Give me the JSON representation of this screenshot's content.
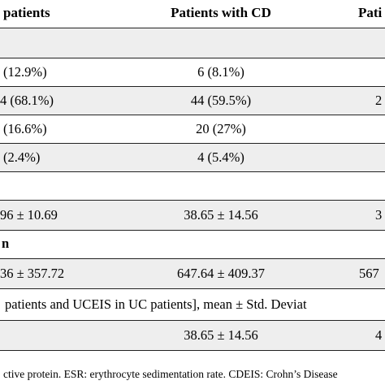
{
  "header": {
    "col1": "patients",
    "col2": "Patients with CD",
    "col3": "Pati"
  },
  "rows": [
    {
      "c1": "",
      "c2": "",
      "c3": ""
    },
    {
      "c1": "(12.9%)",
      "c2": "6 (8.1%)",
      "c3": ""
    },
    {
      "c1": "4 (68.1%)",
      "c2": "44 (59.5%)",
      "c3": "2"
    },
    {
      "c1": "(16.6%)",
      "c2": "20 (27%)",
      "c3": ""
    },
    {
      "c1": "(2.4%)",
      "c2": "4 (5.4%)",
      "c3": ""
    },
    {
      "c1": "",
      "c2": "",
      "c3": ""
    },
    {
      "c1": "96 ± 10.69",
      "c2": "38.65 ± 14.56",
      "c3": "3"
    },
    {
      "c1": "n",
      "c2": "",
      "c3": ""
    },
    {
      "c1": "36 ± 357.72",
      "c2": "647.64 ± 409.37",
      "c3": "567"
    },
    {
      "c1": "patients and UCEIS in UC patients], mean ± Std. Deviat",
      "c2": "",
      "c3": ""
    },
    {
      "c1": "",
      "c2": "38.65 ± 14.56",
      "c3": "4"
    }
  ],
  "footnote": "ctive protein. ESR: erythrocyte sedimentation rate. CDEIS: Crohn’s Disease"
}
